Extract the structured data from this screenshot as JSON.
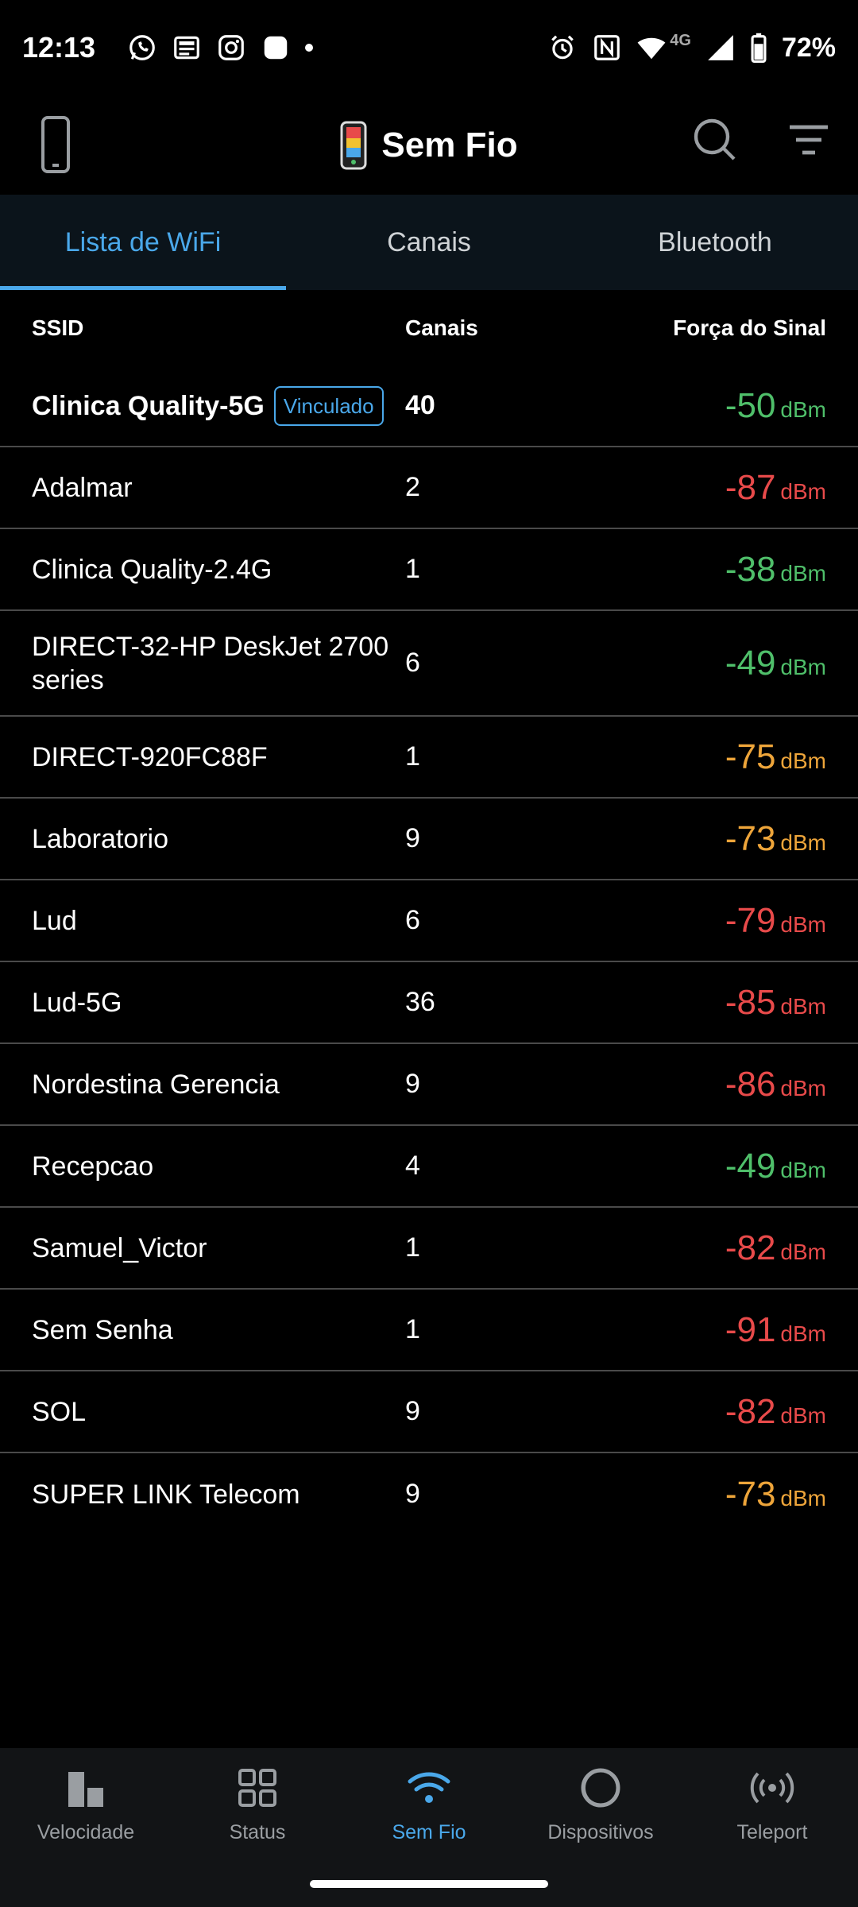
{
  "status_bar": {
    "time": "12:13",
    "network": "4G",
    "battery": "72%",
    "icons": [
      "whatsapp-icon",
      "news-icon",
      "instagram-icon",
      "app-icon",
      "alarm-icon",
      "nfc-icon",
      "wifi-icon",
      "signal-icon",
      "battery-icon"
    ]
  },
  "app_bar": {
    "title": "Sem Fio"
  },
  "tabs": [
    {
      "label": "Lista de WiFi",
      "active": true
    },
    {
      "label": "Canais",
      "active": false
    },
    {
      "label": "Bluetooth",
      "active": false
    }
  ],
  "table": {
    "headers": {
      "ssid": "SSID",
      "channels": "Canais",
      "signal": "Força do Sinal"
    },
    "unit": "dBm",
    "connected_badge": "Vinculado",
    "rows": [
      {
        "ssid": "Clinica Quality-5G",
        "channel": "40",
        "signal": "-50",
        "color": "#4fbf6a",
        "connected": true
      },
      {
        "ssid": "Adalmar",
        "channel": "2",
        "signal": "-87",
        "color": "#e84a4a"
      },
      {
        "ssid": "Clinica Quality-2.4G",
        "channel": "1",
        "signal": "-38",
        "color": "#4fbf6a"
      },
      {
        "ssid": "DIRECT-32-HP DeskJet 2700 series",
        "channel": "6",
        "signal": "-49",
        "color": "#4fbf6a"
      },
      {
        "ssid": "DIRECT-920FC88F",
        "channel": "1",
        "signal": "-75",
        "color": "#eea53a"
      },
      {
        "ssid": "Laboratorio",
        "channel": "9",
        "signal": "-73",
        "color": "#eea53a"
      },
      {
        "ssid": "Lud",
        "channel": "6",
        "signal": "-79",
        "color": "#e84a4a"
      },
      {
        "ssid": "Lud-5G",
        "channel": "36",
        "signal": "-85",
        "color": "#e84a4a"
      },
      {
        "ssid": "Nordestina Gerencia",
        "channel": "9",
        "signal": "-86",
        "color": "#e84a4a"
      },
      {
        "ssid": "Recepcao",
        "channel": "4",
        "signal": "-49",
        "color": "#4fbf6a"
      },
      {
        "ssid": "Samuel_Victor",
        "channel": "1",
        "signal": "-82",
        "color": "#e84a4a"
      },
      {
        "ssid": "Sem Senha",
        "channel": "1",
        "signal": "-91",
        "color": "#e84a4a"
      },
      {
        "ssid": "SOL",
        "channel": "9",
        "signal": "-82",
        "color": "#e84a4a"
      },
      {
        "ssid": "SUPER LINK Telecom",
        "channel": "9",
        "signal": "-73",
        "color": "#eea53a"
      }
    ]
  },
  "bottom_nav": [
    {
      "label": "Velocidade",
      "icon": "speed-icon",
      "active": false
    },
    {
      "label": "Status",
      "icon": "grid-icon",
      "active": false
    },
    {
      "label": "Sem Fio",
      "icon": "wifi-icon",
      "active": true
    },
    {
      "label": "Dispositivos",
      "icon": "devices-icon",
      "active": false
    },
    {
      "label": "Teleport",
      "icon": "teleport-icon",
      "active": false
    }
  ],
  "colors": {
    "accent": "#4aa8ea",
    "good": "#4fbf6a",
    "medium": "#eea53a",
    "bad": "#e84a4a"
  }
}
